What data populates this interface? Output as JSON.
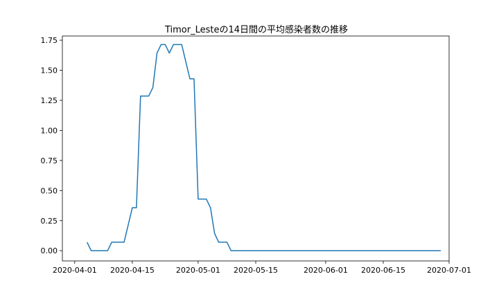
{
  "chart_data": {
    "type": "line",
    "title": "Timor_Lesteの14日間の平均感染者数の推移",
    "xlabel": "",
    "ylabel": "",
    "x_range": [
      "2020-03-29",
      "2020-07-01"
    ],
    "ylim": [
      -0.085,
      1.785
    ],
    "grid": false,
    "line_color": "#1f77b4",
    "x_ticks": [
      "2020-04-01",
      "2020-04-15",
      "2020-05-01",
      "2020-05-15",
      "2020-06-01",
      "2020-06-15",
      "2020-07-01"
    ],
    "y_ticks": [
      0.0,
      0.25,
      0.5,
      0.75,
      1.0,
      1.25,
      1.5,
      1.75
    ],
    "series": [
      {
        "x": [
          "2020-04-04",
          "2020-04-05",
          "2020-04-06",
          "2020-04-07",
          "2020-04-08",
          "2020-04-09",
          "2020-04-10",
          "2020-04-11",
          "2020-04-12",
          "2020-04-13",
          "2020-04-14",
          "2020-04-15",
          "2020-04-16",
          "2020-04-17",
          "2020-04-18",
          "2020-04-19",
          "2020-04-20",
          "2020-04-21",
          "2020-04-22",
          "2020-04-23",
          "2020-04-24",
          "2020-04-25",
          "2020-04-26",
          "2020-04-27",
          "2020-04-28",
          "2020-04-29",
          "2020-04-30",
          "2020-05-01",
          "2020-05-02",
          "2020-05-03",
          "2020-05-04",
          "2020-05-05",
          "2020-05-06",
          "2020-05-07",
          "2020-05-08",
          "2020-05-09",
          "2020-06-29"
        ],
        "y": [
          0.071,
          0.0,
          0.0,
          0.0,
          0.0,
          0.0,
          0.071,
          0.071,
          0.071,
          0.071,
          0.214,
          0.357,
          0.357,
          1.286,
          1.286,
          1.286,
          1.357,
          1.643,
          1.714,
          1.714,
          1.643,
          1.714,
          1.714,
          1.714,
          1.571,
          1.429,
          1.429,
          0.429,
          0.429,
          0.429,
          0.357,
          0.143,
          0.071,
          0.071,
          0.071,
          0.0,
          0.0
        ]
      }
    ]
  }
}
